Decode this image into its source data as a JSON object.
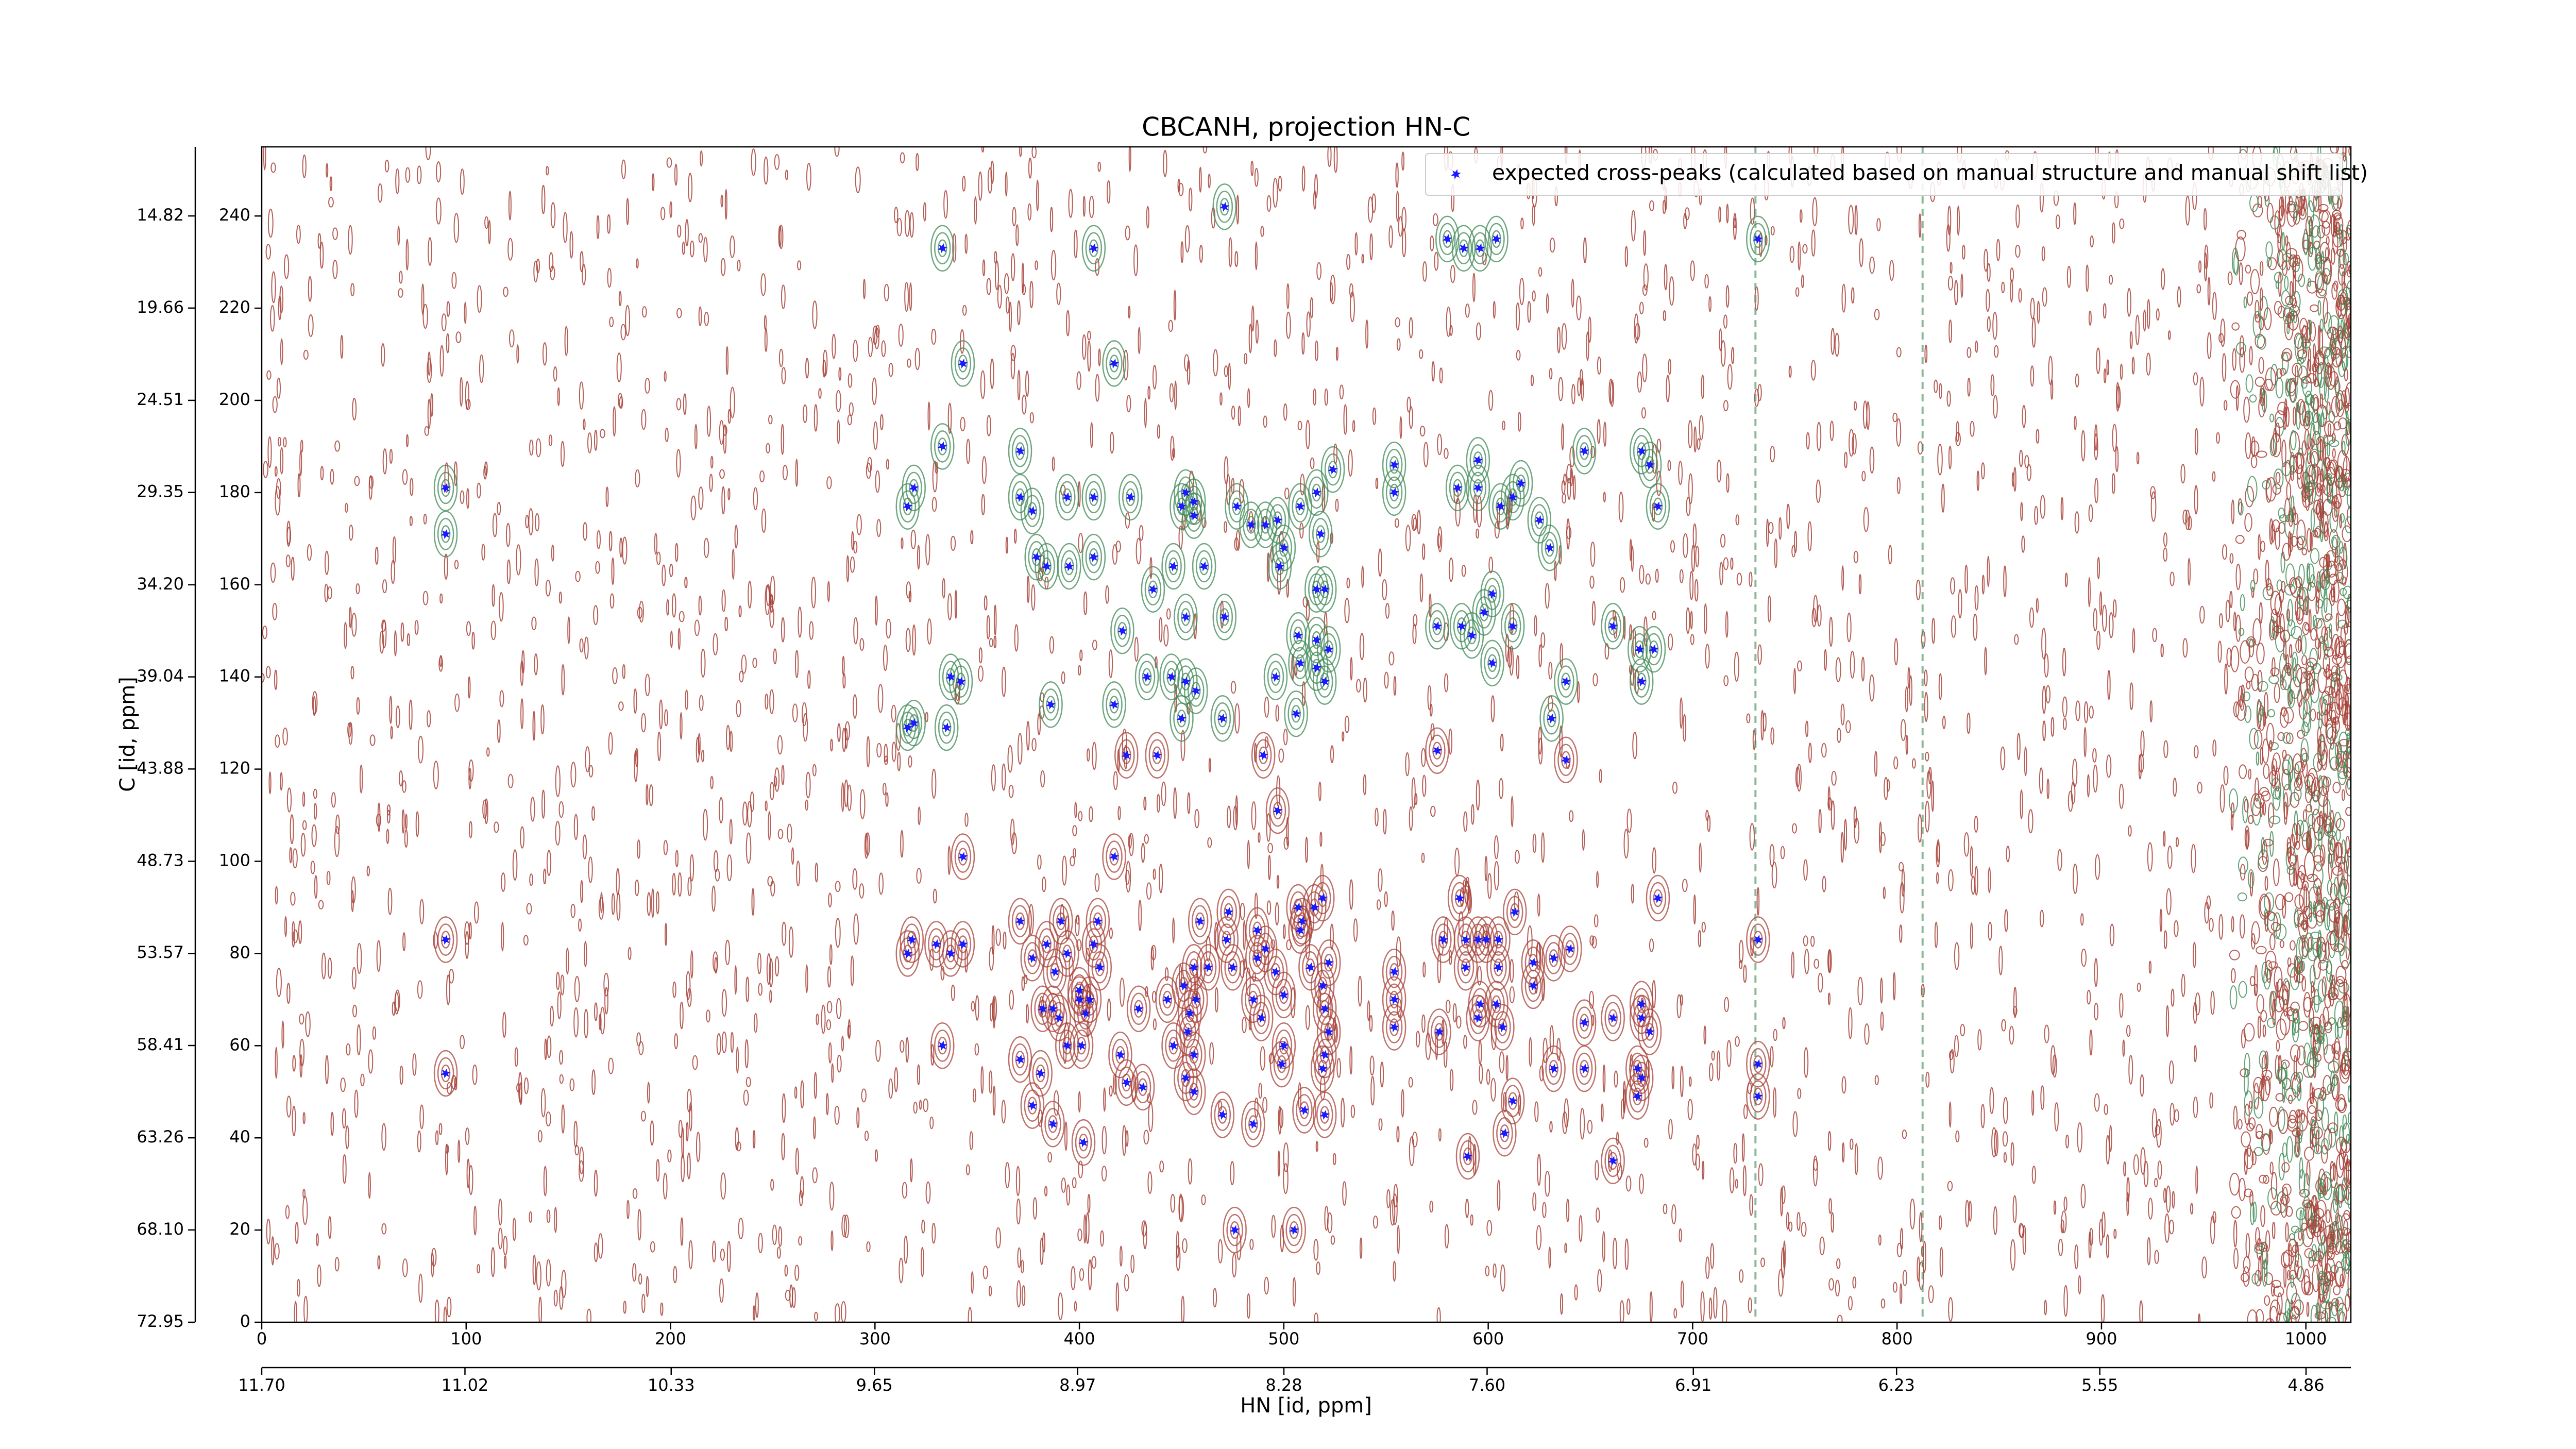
{
  "chart_data": {
    "type": "scatter",
    "title": "CBCANH, projection HN-C",
    "x2label": "HN [id, ppm]",
    "y2label": "C [id, ppm]",
    "xlim": [
      0,
      1022
    ],
    "xticks": [
      0,
      100,
      200,
      300,
      400,
      500,
      600,
      700,
      800,
      900,
      1000
    ],
    "ylim": [
      0,
      255
    ],
    "yticks": [
      0,
      20,
      40,
      60,
      80,
      100,
      120,
      140,
      160,
      180,
      200,
      220,
      240
    ],
    "x2lim": [
      11.7,
      4.71
    ],
    "x2ticks": [
      {
        "value": 11.7,
        "label": "11.70"
      },
      11.02,
      10.33,
      9.65,
      8.97,
      8.28,
      {
        "value": 7.6,
        "label": "7.60"
      },
      6.91,
      6.23,
      5.55,
      4.86
    ],
    "y2lim": [
      72.95,
      11.19
    ],
    "y2ticks": [
      72.95,
      {
        "value": 68.1,
        "label": "68.10"
      },
      63.26,
      58.41,
      53.57,
      48.73,
      43.88,
      39.04,
      {
        "value": 34.2,
        "label": "34.20"
      },
      29.35,
      24.51,
      19.66,
      14.82
    ],
    "legend": "upper right",
    "series": [
      {
        "name": "expected cross-peaks (calculated based on manual structure and manual shift list)",
        "color": "#1a1aff",
        "x": [
          471,
          333,
          407,
          580,
          588,
          596,
          604,
          732,
          343,
          417,
          333,
          371,
          90,
          90,
          319,
          316,
          371,
          377,
          394,
          407,
          425,
          452,
          456,
          450,
          456,
          477,
          484,
          491,
          497,
          508,
          516,
          524,
          554,
          554,
          585,
          595,
          595,
          606,
          612,
          616,
          647,
          675,
          679,
          683,
          625,
          630,
          379,
          384,
          395,
          407,
          436,
          446,
          461,
          452,
          471,
          500,
          518,
          498,
          516,
          520,
          421,
          507,
          516,
          522,
          508,
          516,
          520,
          337,
          342,
          319,
          316,
          335,
          386,
          417,
          433,
          445,
          452,
          457,
          450,
          470,
          496,
          506,
          575,
          587,
          592,
          598,
          602,
          612,
          602,
          638,
          631,
          661,
          674,
          675,
          681,
          638,
          423,
          438,
          490,
          497,
          575,
          417,
          343,
          371,
          391,
          409,
          384,
          394,
          407,
          318,
          316,
          330,
          337,
          343,
          90,
          459,
          473,
          472,
          487,
          507,
          509,
          515,
          519,
          508,
          377,
          388,
          400,
          410,
          456,
          463,
          475,
          487,
          496,
          491,
          513,
          522,
          451,
          457,
          454,
          382,
          387,
          400,
          405,
          429,
          443,
          485,
          489,
          500,
          519,
          520,
          390,
          403,
          554,
          554,
          554,
          586,
          578,
          589,
          595,
          599,
          605,
          613,
          589,
          605,
          622,
          632,
          640,
          596,
          595,
          604,
          607,
          622,
          647,
          661,
          675,
          675,
          679,
          683,
          732,
          90,
          333,
          371,
          381,
          394,
          401,
          420,
          423,
          431,
          446,
          453,
          456,
          452,
          456,
          470,
          500,
          499,
          522,
          519,
          520,
          510,
          520,
          485,
          377,
          387,
          402,
          576,
          632,
          647,
          673,
          675,
          673,
          612,
          608,
          590,
          661,
          732,
          732,
          476,
          505
        ],
        "values": [
          242,
          233,
          233,
          235,
          233,
          233,
          235,
          235,
          208,
          208,
          190,
          189,
          181,
          171,
          181,
          177,
          179,
          176,
          179,
          179,
          179,
          180,
          178,
          177,
          175,
          177,
          173,
          173,
          174,
          177,
          180,
          185,
          186,
          180,
          181,
          187,
          181,
          177,
          179,
          182,
          189,
          189,
          186,
          177,
          174,
          168,
          166,
          164,
          164,
          166,
          159,
          164,
          164,
          153,
          153,
          168,
          171,
          164,
          159,
          159,
          150,
          149,
          148,
          146,
          143,
          142,
          139,
          140,
          139,
          130,
          129,
          129,
          134,
          134,
          140,
          140,
          139,
          137,
          131,
          131,
          140,
          132,
          151,
          151,
          149,
          154,
          158,
          151,
          143,
          139,
          131,
          151,
          146,
          139,
          146,
          122,
          123,
          123,
          123,
          111,
          124,
          101,
          101,
          87,
          87,
          87,
          82,
          80,
          82,
          83,
          80,
          82,
          80,
          82,
          83,
          87,
          89,
          83,
          85,
          90,
          87,
          90,
          92,
          85,
          79,
          76,
          72,
          77,
          77,
          77,
          77,
          79,
          76,
          81,
          77,
          78,
          73,
          70,
          67,
          68,
          68,
          70,
          70,
          68,
          70,
          70,
          66,
          71,
          73,
          68,
          66,
          67,
          76,
          70,
          64,
          92,
          83,
          83,
          83,
          83,
          83,
          89,
          77,
          77,
          78,
          79,
          81,
          69,
          66,
          69,
          64,
          73,
          65,
          66,
          69,
          66,
          63,
          92,
          83,
          54,
          60,
          57,
          54,
          60,
          60,
          58,
          52,
          51,
          60,
          63,
          58,
          53,
          50,
          45,
          60,
          56,
          63,
          55,
          58,
          46,
          45,
          43,
          47,
          43,
          39,
          63,
          55,
          55,
          55,
          53,
          49,
          48,
          41,
          36,
          35,
          56,
          49,
          20,
          20
        ]
      }
    ]
  }
}
